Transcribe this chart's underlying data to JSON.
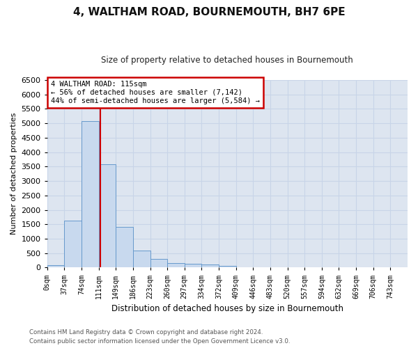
{
  "title": "4, WALTHAM ROAD, BOURNEMOUTH, BH7 6PE",
  "subtitle": "Size of property relative to detached houses in Bournemouth",
  "xlabel": "Distribution of detached houses by size in Bournemouth",
  "ylabel": "Number of detached properties",
  "footer_line1": "Contains HM Land Registry data © Crown copyright and database right 2024.",
  "footer_line2": "Contains public sector information licensed under the Open Government Licence v3.0.",
  "bin_labels": [
    "0sqm",
    "37sqm",
    "74sqm",
    "111sqm",
    "149sqm",
    "186sqm",
    "223sqm",
    "260sqm",
    "297sqm",
    "334sqm",
    "372sqm",
    "409sqm",
    "446sqm",
    "483sqm",
    "520sqm",
    "557sqm",
    "594sqm",
    "632sqm",
    "669sqm",
    "706sqm",
    "743sqm"
  ],
  "bar_values": [
    70,
    1620,
    5080,
    3570,
    1400,
    600,
    295,
    155,
    120,
    95,
    55,
    0,
    0,
    0,
    0,
    0,
    0,
    0,
    0,
    0,
    0
  ],
  "bar_color": "#c8d9ee",
  "bar_edge_color": "#6699cc",
  "vline_color": "#cc0000",
  "annotation_box_edge": "#cc0000",
  "annotation_box_facecolor": "#ffffff",
  "ylim": [
    0,
    6500
  ],
  "yticks": [
    0,
    500,
    1000,
    1500,
    2000,
    2500,
    3000,
    3500,
    4000,
    4500,
    5000,
    5500,
    6000,
    6500
  ],
  "grid_color": "#c8d4e8",
  "background_color": "#dde5f0",
  "bin_width": 37,
  "property_sqm": 115
}
